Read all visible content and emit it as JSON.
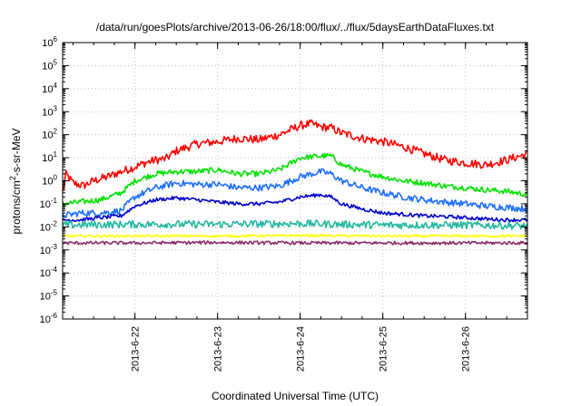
{
  "chart_data": {
    "type": "line",
    "title": "/data/run/goesPlots/archive/2013-06-26/18:00/flux/../flux/5daysEarthDataFluxes.txt",
    "xlabel": "Coordinated Universal Time (UTC)",
    "ylabel": {
      "prefix": "protons/cm",
      "sup": "2",
      "suffix": "-s-sr-MeV"
    },
    "y_scale": "log",
    "ylim": [
      1e-06,
      1000000.0
    ],
    "xlim": [
      "2013-06-21 03:00",
      "2013-06-26 18:00"
    ],
    "y_ticks": [
      {
        "v": 1e-06,
        "base": "10",
        "exp": "-6"
      },
      {
        "v": 1e-05,
        "base": "10",
        "exp": "-5"
      },
      {
        "v": 0.0001,
        "base": "10",
        "exp": "-4"
      },
      {
        "v": 0.001,
        "base": "10",
        "exp": "-3"
      },
      {
        "v": 0.01,
        "base": "10",
        "exp": "-2"
      },
      {
        "v": 0.1,
        "base": "10",
        "exp": "-1"
      },
      {
        "v": 1.0,
        "base": "10",
        "exp": "0"
      },
      {
        "v": 10.0,
        "base": "10",
        "exp": "1"
      },
      {
        "v": 100.0,
        "base": "10",
        "exp": "2"
      },
      {
        "v": 1000.0,
        "base": "10",
        "exp": "3"
      },
      {
        "v": 10000.0,
        "base": "10",
        "exp": "4"
      },
      {
        "v": 100000.0,
        "base": "10",
        "exp": "5"
      },
      {
        "v": 1000000.0,
        "base": "10",
        "exp": "6"
      }
    ],
    "x_ticks": [
      {
        "t": "2013-06-22 00:00",
        "label": "2013-6-22"
      },
      {
        "t": "2013-06-23 00:00",
        "label": "2013-6-23"
      },
      {
        "t": "2013-06-24 00:00",
        "label": "2013-6-24"
      },
      {
        "t": "2013-06-25 00:00",
        "label": "2013-6-25"
      },
      {
        "t": "2013-06-26 00:00",
        "label": "2013-6-26"
      }
    ],
    "grid": true,
    "legend": "none",
    "series": [
      {
        "color": "#ff0000",
        "noise": 0.18,
        "x": [
          "2013-06-21 03:00",
          "2013-06-21 04:00",
          "2013-06-21 06:00",
          "2013-06-21 09:00",
          "2013-06-21 12:00",
          "2013-06-21 16:00",
          "2013-06-21 20:00",
          "2013-06-22 00:00",
          "2013-06-22 03:00",
          "2013-06-22 06:00",
          "2013-06-22 09:00",
          "2013-06-22 12:00",
          "2013-06-22 18:00",
          "2013-06-23 00:00",
          "2013-06-23 06:00",
          "2013-06-23 12:00",
          "2013-06-23 18:00",
          "2013-06-24 00:00",
          "2013-06-24 03:00",
          "2013-06-24 06:00",
          "2013-06-24 09:00",
          "2013-06-24 12:00",
          "2013-06-24 18:00",
          "2013-06-25 00:00",
          "2013-06-25 06:00",
          "2013-06-25 12:00",
          "2013-06-25 18:00",
          "2013-06-26 00:00",
          "2013-06-26 06:00",
          "2013-06-26 12:00",
          "2013-06-26 18:00"
        ],
        "y": [
          0.3,
          2,
          0.8,
          0.6,
          1,
          1.5,
          2.5,
          4,
          6,
          8,
          9,
          20,
          40,
          50,
          70,
          60,
          100,
          250,
          300,
          220,
          200,
          120,
          70,
          50,
          30,
          15,
          8,
          6,
          5,
          8,
          15
        ]
      },
      {
        "color": "#00e000",
        "noise": 0.12,
        "x": [
          "2013-06-21 03:00",
          "2013-06-21 08:00",
          "2013-06-21 14:00",
          "2013-06-21 20:00",
          "2013-06-22 00:00",
          "2013-06-22 06:00",
          "2013-06-22 12:00",
          "2013-06-22 18:00",
          "2013-06-23 00:00",
          "2013-06-23 06:00",
          "2013-06-23 12:00",
          "2013-06-23 18:00",
          "2013-06-24 00:00",
          "2013-06-24 06:00",
          "2013-06-24 09:00",
          "2013-06-24 12:00",
          "2013-06-24 18:00",
          "2013-06-25 00:00",
          "2013-06-25 06:00",
          "2013-06-25 12:00",
          "2013-06-25 18:00",
          "2013-06-26 00:00",
          "2013-06-26 06:00",
          "2013-06-26 12:00",
          "2013-06-26 18:00"
        ],
        "y": [
          0.1,
          0.12,
          0.15,
          0.3,
          1,
          2,
          2.5,
          2.5,
          3,
          2,
          2,
          3,
          10,
          12,
          12,
          5,
          2.5,
          1.5,
          1,
          0.8,
          0.6,
          0.5,
          0.4,
          0.35,
          0.25
        ]
      },
      {
        "color": "#1e6fff",
        "noise": 0.14,
        "x": [
          "2013-06-21 03:00",
          "2013-06-21 08:00",
          "2013-06-21 14:00",
          "2013-06-21 20:00",
          "2013-06-22 00:00",
          "2013-06-22 06:00",
          "2013-06-22 12:00",
          "2013-06-22 18:00",
          "2013-06-23 00:00",
          "2013-06-23 06:00",
          "2013-06-23 12:00",
          "2013-06-23 18:00",
          "2013-06-24 00:00",
          "2013-06-24 06:00",
          "2013-06-24 09:00",
          "2013-06-24 12:00",
          "2013-06-24 18:00",
          "2013-06-25 00:00",
          "2013-06-25 06:00",
          "2013-06-25 12:00",
          "2013-06-25 18:00",
          "2013-06-26 00:00",
          "2013-06-26 06:00",
          "2013-06-26 12:00",
          "2013-06-26 18:00"
        ],
        "y": [
          0.03,
          0.04,
          0.04,
          0.05,
          0.2,
          0.5,
          0.8,
          0.7,
          0.7,
          0.5,
          0.5,
          0.6,
          1.5,
          2.5,
          2,
          1,
          0.5,
          0.3,
          0.2,
          0.15,
          0.12,
          0.1,
          0.08,
          0.07,
          0.06
        ]
      },
      {
        "color": "#0000cc",
        "noise": 0.08,
        "x": [
          "2013-06-21 03:00",
          "2013-06-21 08:00",
          "2013-06-21 14:00",
          "2013-06-21 20:00",
          "2013-06-22 00:00",
          "2013-06-22 06:00",
          "2013-06-22 12:00",
          "2013-06-22 18:00",
          "2013-06-23 00:00",
          "2013-06-23 06:00",
          "2013-06-23 12:00",
          "2013-06-23 18:00",
          "2013-06-24 00:00",
          "2013-06-24 06:00",
          "2013-06-24 09:00",
          "2013-06-24 12:00",
          "2013-06-24 18:00",
          "2013-06-25 00:00",
          "2013-06-25 06:00",
          "2013-06-25 12:00",
          "2013-06-25 18:00",
          "2013-06-26 00:00",
          "2013-06-26 06:00",
          "2013-06-26 12:00",
          "2013-06-26 18:00"
        ],
        "y": [
          0.02,
          0.02,
          0.025,
          0.03,
          0.08,
          0.15,
          0.18,
          0.15,
          0.12,
          0.1,
          0.1,
          0.12,
          0.2,
          0.25,
          0.2,
          0.1,
          0.06,
          0.04,
          0.035,
          0.03,
          0.028,
          0.025,
          0.022,
          0.02,
          0.02
        ]
      },
      {
        "color": "#22b8a0",
        "noise": 0.16,
        "x": [
          "2013-06-21 03:00",
          "2013-06-22 00:00",
          "2013-06-23 00:00",
          "2013-06-24 00:00",
          "2013-06-25 00:00",
          "2013-06-26 00:00",
          "2013-06-26 18:00"
        ],
        "y": [
          0.012,
          0.013,
          0.013,
          0.014,
          0.012,
          0.012,
          0.011
        ]
      },
      {
        "color": "#ffff00",
        "noise": 0.05,
        "x": [
          "2013-06-21 03:00",
          "2013-06-22 00:00",
          "2013-06-23 00:00",
          "2013-06-24 00:00",
          "2013-06-25 00:00",
          "2013-06-26 00:00",
          "2013-06-26 18:00"
        ],
        "y": [
          0.004,
          0.004,
          0.004,
          0.0042,
          0.004,
          0.004,
          0.004
        ]
      },
      {
        "color": "#8b2a6a",
        "noise": 0.07,
        "x": [
          "2013-06-21 03:00",
          "2013-06-22 00:00",
          "2013-06-23 00:00",
          "2013-06-24 00:00",
          "2013-06-25 00:00",
          "2013-06-26 00:00",
          "2013-06-26 18:00"
        ],
        "y": [
          0.002,
          0.002,
          0.0021,
          0.002,
          0.002,
          0.002,
          0.002
        ]
      }
    ]
  }
}
